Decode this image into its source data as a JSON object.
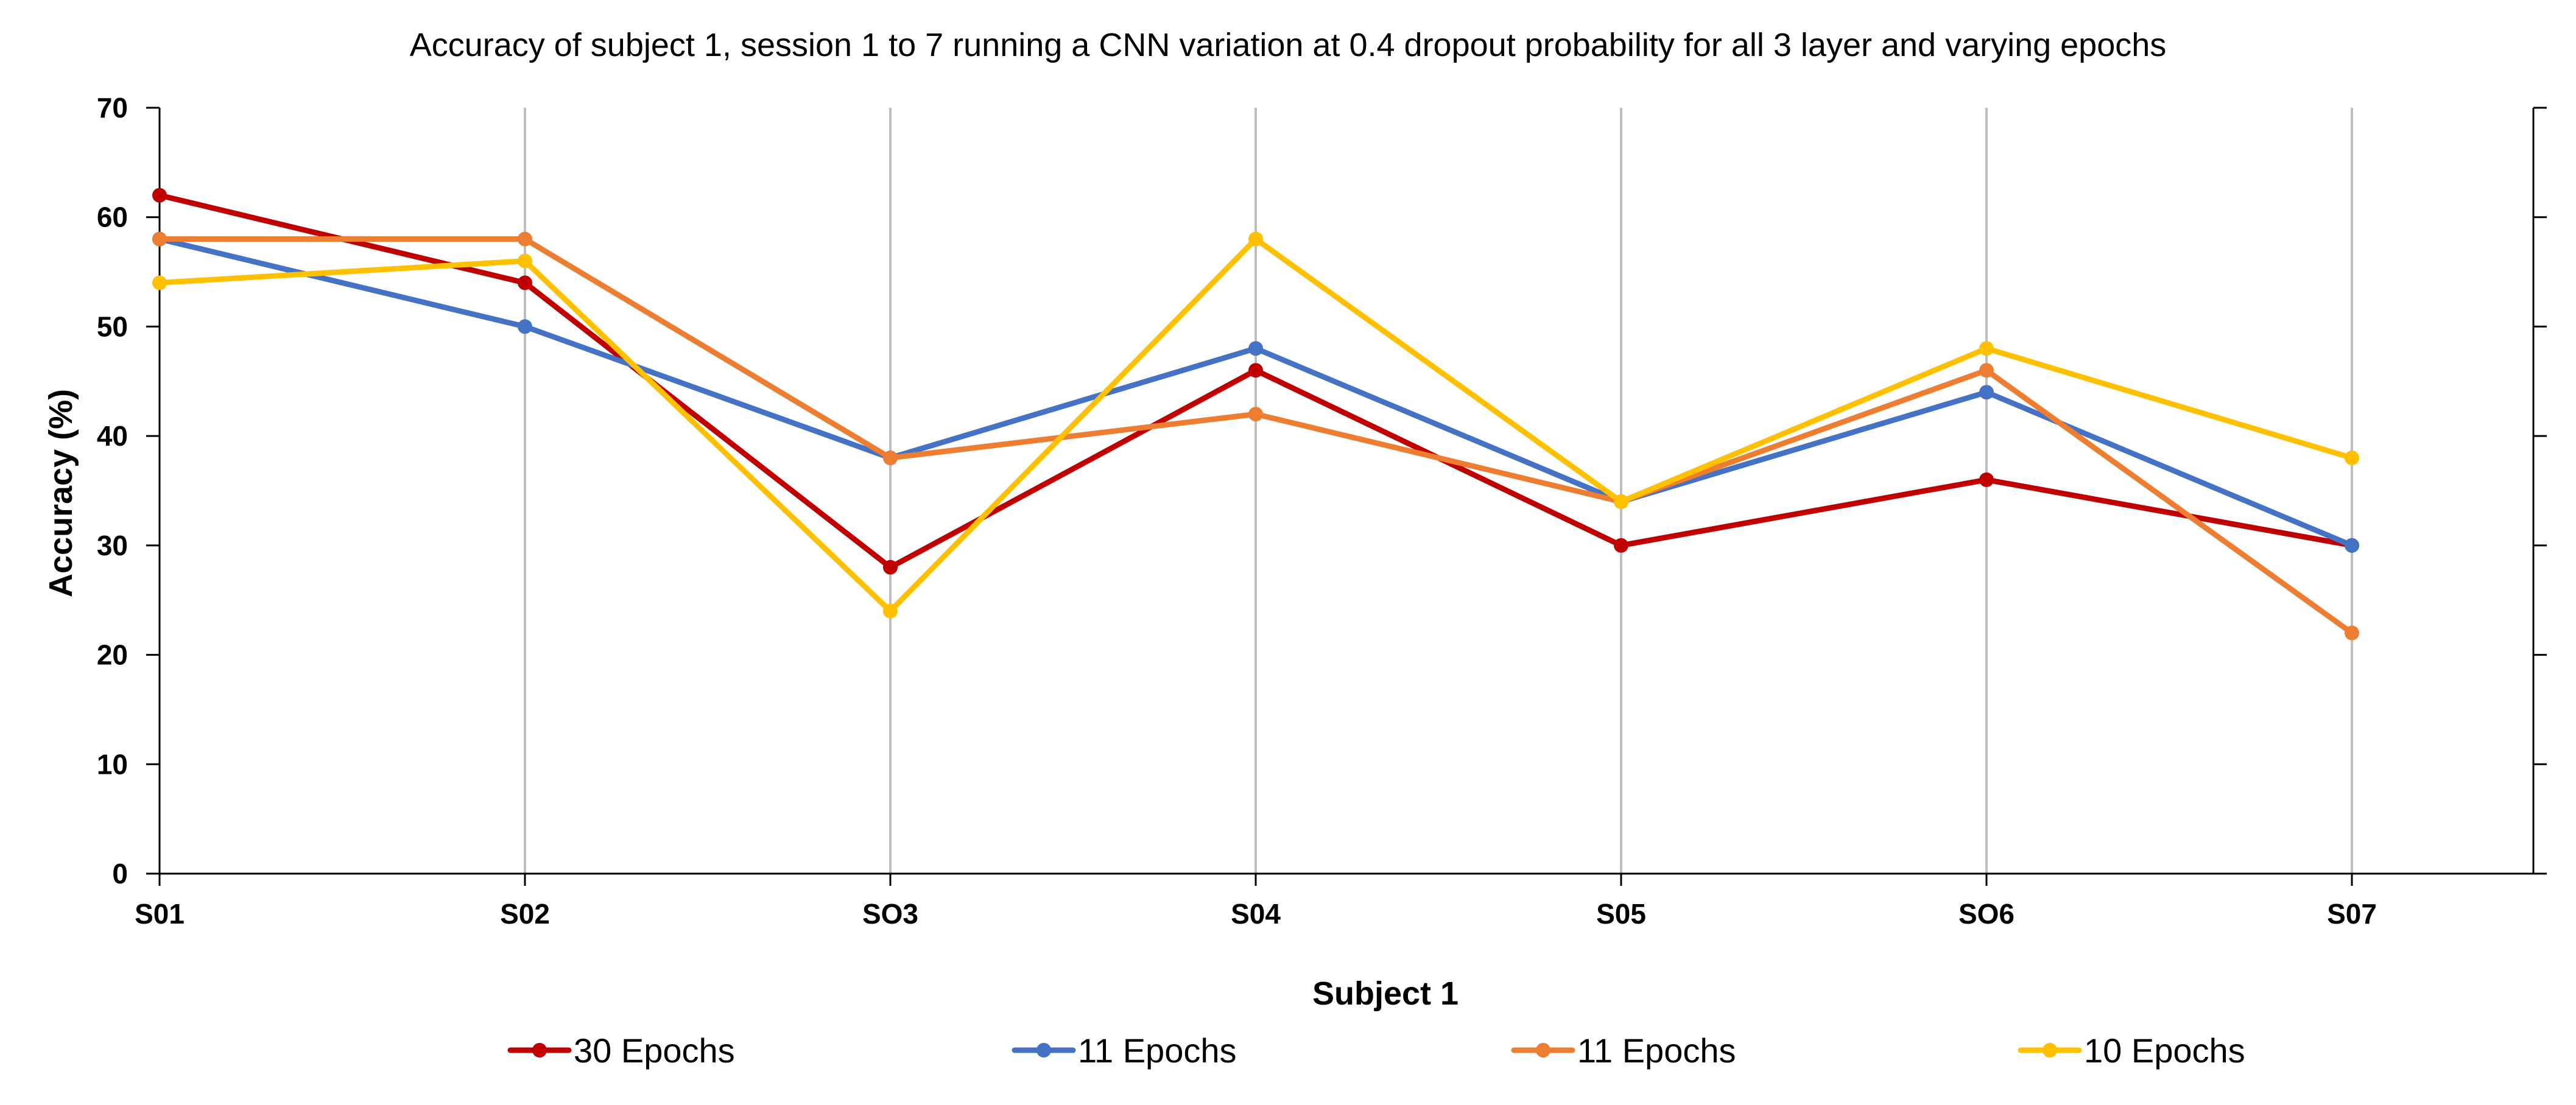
{
  "chart_data": {
    "type": "line",
    "title": "Accuracy of subject 1, session 1 to 7 running a CNN variation at 0.4 dropout probability for all 3 layer and varying epochs",
    "xlabel": "Subject 1",
    "ylabel": "Accuracy (%)",
    "categories": [
      "S01",
      "S02",
      "SO3",
      "S04",
      "S05",
      "SO6",
      "S07"
    ],
    "ylim": [
      0,
      70
    ],
    "yticks": [
      0,
      10,
      20,
      30,
      40,
      50,
      60,
      70
    ],
    "grid": "vertical",
    "legend_position": "bottom",
    "series": [
      {
        "name": "30 Epochs",
        "color": "#C00000",
        "values": [
          62,
          54,
          28,
          46,
          30,
          36,
          30
        ]
      },
      {
        "name": "11 Epochs",
        "color": "#4472C4",
        "values": [
          58,
          50,
          38,
          48,
          34,
          44,
          30
        ]
      },
      {
        "name": "11 Epochs",
        "color": "#ED7D31",
        "values": [
          58,
          58,
          38,
          42,
          34,
          46,
          22
        ]
      },
      {
        "name": "10 Epochs",
        "color": "#FFC000",
        "values": [
          54,
          56,
          24,
          58,
          34,
          48,
          38
        ]
      }
    ]
  }
}
